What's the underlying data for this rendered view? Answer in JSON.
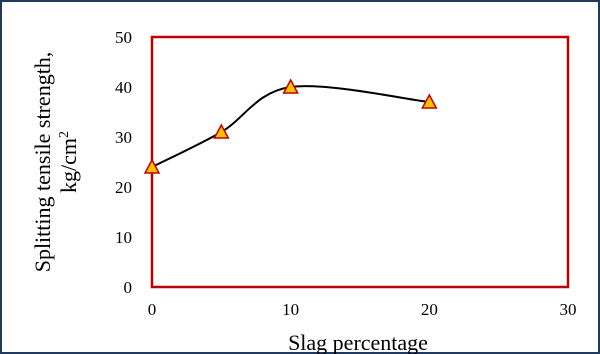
{
  "chart_data": {
    "type": "scatter",
    "xlabel": "Slag percentage",
    "ylabel_line1": "Splitting tensile strength,",
    "ylabel_line2_base": "kg/cm",
    "ylabel_line2_sup": "2",
    "xlim": [
      0,
      30
    ],
    "ylim": [
      0,
      50
    ],
    "x_ticks": [
      "0",
      "10",
      "20",
      "30"
    ],
    "y_ticks": [
      "0",
      "10",
      "20",
      "30",
      "40",
      "50"
    ],
    "grid": false,
    "smoothed_line": true,
    "marker": "triangle",
    "series": [
      {
        "x": [
          0,
          5,
          10,
          20
        ],
        "y": [
          24,
          31,
          40,
          37
        ]
      }
    ],
    "colors": {
      "plot_border": "#c00000",
      "line": "#000000",
      "marker_fill": "#ffc000",
      "marker_edge": "#c00000",
      "frame_border": "#1f3a5f"
    }
  }
}
